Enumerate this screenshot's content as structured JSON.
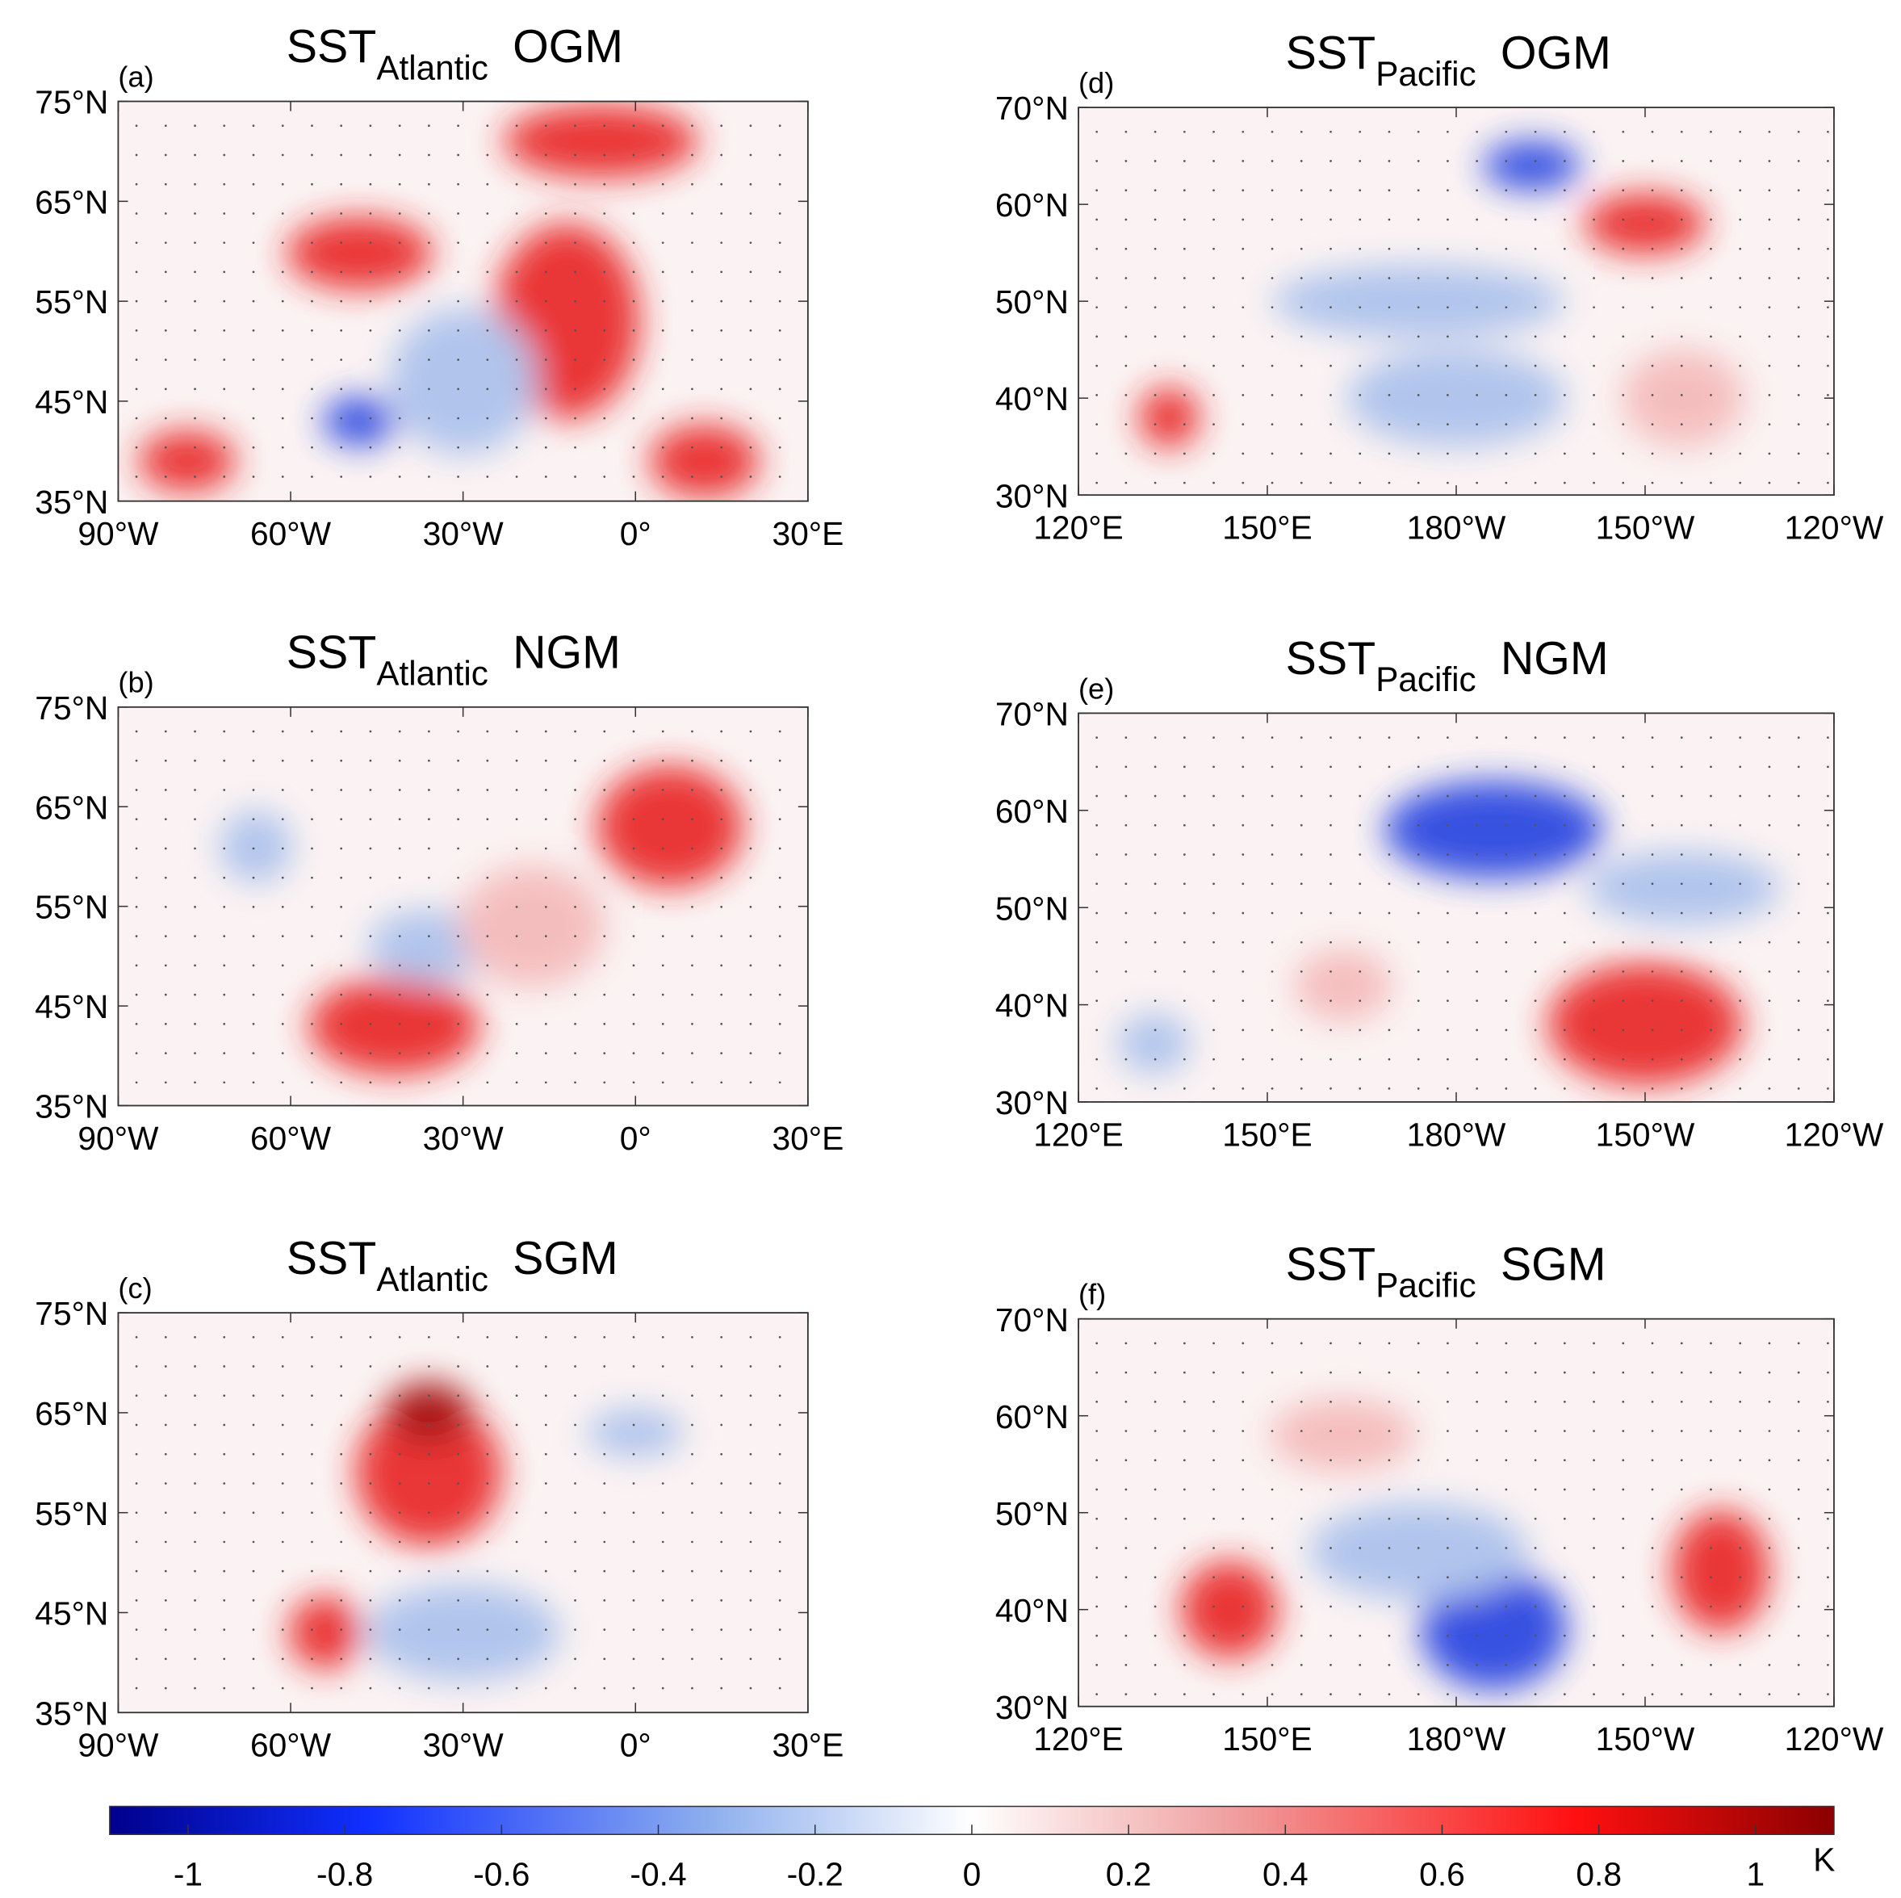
{
  "panels": [
    {
      "label": "(a)",
      "title": "SST",
      "subscript": "Atlantic",
      "method": "OGM",
      "lat_ticks": [
        "75°N",
        "65°N",
        "55°N",
        "45°N",
        "35°N"
      ],
      "lon_ticks": [
        "90°W",
        "60°W",
        "30°W",
        "0°",
        "30°E"
      ]
    },
    {
      "label": "(b)",
      "title": "SST",
      "subscript": "Atlantic",
      "method": "NGM",
      "lat_ticks": [
        "75°N",
        "65°N",
        "55°N",
        "45°N",
        "35°N"
      ],
      "lon_ticks": [
        "90°W",
        "60°W",
        "30°W",
        "0°",
        "30°E"
      ]
    },
    {
      "label": "(c)",
      "title": "SST",
      "subscript": "Atlantic",
      "method": "SGM",
      "lat_ticks": [
        "75°N",
        "65°N",
        "55°N",
        "45°N",
        "35°N"
      ],
      "lon_ticks": [
        "90°W",
        "60°W",
        "30°W",
        "0°",
        "30°E"
      ]
    },
    {
      "label": "(d)",
      "title": "SST",
      "subscript": "Pacific",
      "method": "OGM",
      "lat_ticks": [
        "70°N",
        "60°N",
        "50°N",
        "40°N",
        "30°N"
      ],
      "lon_ticks": [
        "120°E",
        "150°E",
        "180°W",
        "150°W",
        "120°W"
      ]
    },
    {
      "label": "(e)",
      "title": "SST",
      "subscript": "Pacific",
      "method": "NGM",
      "lat_ticks": [
        "70°N",
        "60°N",
        "50°N",
        "40°N",
        "30°N"
      ],
      "lon_ticks": [
        "120°E",
        "150°E",
        "180°W",
        "150°W",
        "120°W"
      ]
    },
    {
      "label": "(f)",
      "title": "SST",
      "subscript": "Pacific",
      "method": "SGM",
      "lat_ticks": [
        "70°N",
        "60°N",
        "50°N",
        "40°N",
        "30°N"
      ],
      "lon_ticks": [
        "120°E",
        "150°E",
        "180°W",
        "150°W",
        "120°W"
      ]
    }
  ],
  "colorbar": {
    "lim": [
      -1.1,
      1.1
    ],
    "ticks": [
      -1,
      -0.8,
      -0.6,
      -0.4,
      -0.2,
      0,
      0.2,
      0.4,
      0.6,
      0.8,
      1
    ],
    "unit": "K"
  }
}
